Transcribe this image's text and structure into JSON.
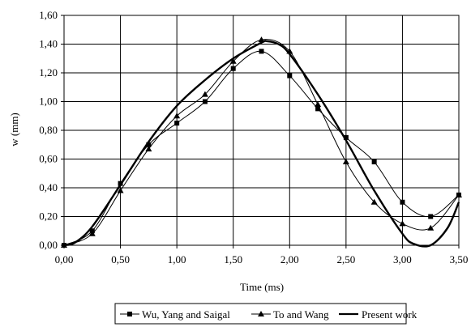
{
  "chart_data": {
    "type": "line",
    "title": "",
    "xlabel": "Time (ms)",
    "ylabel": "w (mm)",
    "xlim": [
      0,
      3.5
    ],
    "ylim": [
      0,
      1.6
    ],
    "x_ticks": [
      "0,00",
      "0,50",
      "1,00",
      "1,50",
      "2,00",
      "2,50",
      "3,00",
      "3,50"
    ],
    "y_ticks": [
      "0,00",
      "0,20",
      "0,40",
      "0,60",
      "0,80",
      "1,00",
      "1,20",
      "1,40",
      "1,60"
    ],
    "x_tick_values": [
      0,
      0.5,
      1.0,
      1.5,
      2.0,
      2.5,
      3.0,
      3.5
    ],
    "y_tick_values": [
      0,
      0.2,
      0.4,
      0.6,
      0.8,
      1.0,
      1.2,
      1.4,
      1.6
    ],
    "grid": true,
    "legend_position": "bottom",
    "series": [
      {
        "name": "Wu, Yang and Saigal",
        "marker": "square",
        "line_width": "thin",
        "color": "#000000",
        "x": [
          0,
          0.25,
          0.5,
          0.75,
          1.0,
          1.25,
          1.5,
          1.75,
          2.0,
          2.25,
          2.5,
          2.75,
          3.0,
          3.25,
          3.5
        ],
        "y": [
          0.0,
          0.1,
          0.43,
          0.7,
          0.85,
          1.0,
          1.23,
          1.35,
          1.18,
          0.95,
          0.75,
          0.58,
          0.3,
          0.2,
          0.35
        ]
      },
      {
        "name": "To and Wang",
        "marker": "triangle",
        "line_width": "thin",
        "color": "#000000",
        "x": [
          0,
          0.25,
          0.5,
          0.75,
          1.0,
          1.25,
          1.5,
          1.75,
          2.0,
          2.25,
          2.5,
          2.75,
          3.0,
          3.25,
          3.5
        ],
        "y": [
          0.0,
          0.08,
          0.38,
          0.67,
          0.9,
          1.05,
          1.28,
          1.43,
          1.35,
          0.98,
          0.58,
          0.3,
          0.15,
          0.12,
          0.35
        ]
      },
      {
        "name": "Present work",
        "marker": "none",
        "line_width": "thick",
        "color": "#000000",
        "x": [
          0,
          0.1,
          0.25,
          0.5,
          0.75,
          1.0,
          1.25,
          1.5,
          1.75,
          1.8,
          1.9,
          2.0,
          2.25,
          2.5,
          2.75,
          3.0,
          3.1,
          3.25,
          3.4,
          3.5
        ],
        "y": [
          0.0,
          0.02,
          0.13,
          0.42,
          0.72,
          0.97,
          1.15,
          1.3,
          1.41,
          1.42,
          1.4,
          1.33,
          1.05,
          0.73,
          0.38,
          0.08,
          0.01,
          0.0,
          0.12,
          0.3
        ]
      }
    ]
  }
}
